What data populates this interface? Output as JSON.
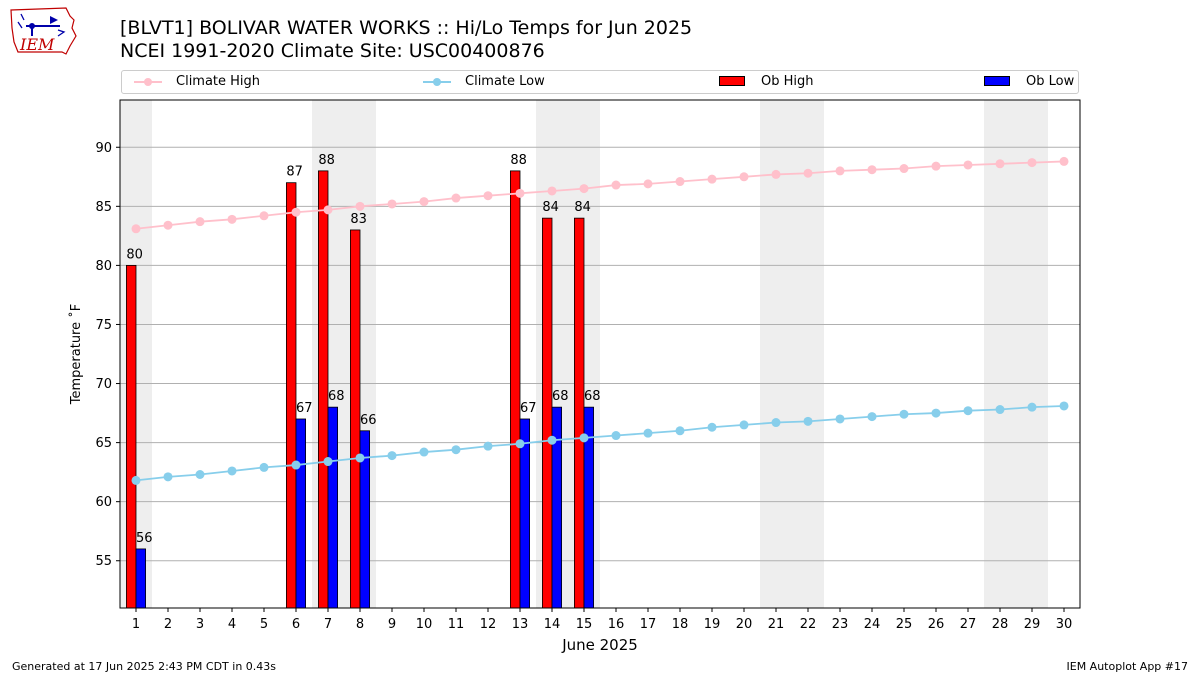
{
  "header": {
    "title_line1": "[BLVT1] BOLIVAR WATER WORKS :: Hi/Lo Temps for Jun 2025",
    "title_line2": "NCEI 1991-2020 Climate Site: USC00400876",
    "logo_text": "IEM"
  },
  "footer": {
    "left": "Generated at 17 Jun 2025 2:43 PM CDT in 0.43s",
    "right": "IEM Autoplot App #17"
  },
  "colors": {
    "climate_high": "#ffc0cb",
    "climate_low": "#87ceeb",
    "ob_high": "#ff0000",
    "ob_low": "#0000ff",
    "weekend_shade": "#eeeeee",
    "grid": "#b0b0b0"
  },
  "chart_data": {
    "type": "bar",
    "title": "[BLVT1] BOLIVAR WATER WORKS :: Hi/Lo Temps for Jun 2025",
    "subtitle": "NCEI 1991-2020 Climate Site: USC00400876",
    "xlabel": "June 2025",
    "ylabel": "Temperature ˚F",
    "xlim": [
      0.5,
      30.5
    ],
    "ylim": [
      51,
      94
    ],
    "yticks": [
      55,
      60,
      65,
      70,
      75,
      80,
      85,
      90
    ],
    "grid": "y",
    "legend_position": "top",
    "legend": [
      "Climate High",
      "Climate Low",
      "Ob High",
      "Ob Low"
    ],
    "days": [
      1,
      2,
      3,
      4,
      5,
      6,
      7,
      8,
      9,
      10,
      11,
      12,
      13,
      14,
      15,
      16,
      17,
      18,
      19,
      20,
      21,
      22,
      23,
      24,
      25,
      26,
      27,
      28,
      29,
      30
    ],
    "shaded_weekends": [
      [
        1,
        1
      ],
      [
        7,
        8
      ],
      [
        14,
        15
      ],
      [
        21,
        22
      ],
      [
        28,
        29
      ]
    ],
    "series": [
      {
        "name": "Climate High",
        "kind": "line",
        "values": [
          83.1,
          83.4,
          83.7,
          83.9,
          84.2,
          84.5,
          84.7,
          85.0,
          85.2,
          85.4,
          85.7,
          85.9,
          86.1,
          86.3,
          86.5,
          86.8,
          86.9,
          87.1,
          87.3,
          87.5,
          87.7,
          87.8,
          88.0,
          88.1,
          88.2,
          88.4,
          88.5,
          88.6,
          88.7,
          88.8
        ]
      },
      {
        "name": "Climate Low",
        "kind": "line",
        "values": [
          61.8,
          62.1,
          62.3,
          62.6,
          62.9,
          63.1,
          63.4,
          63.7,
          63.9,
          64.2,
          64.4,
          64.7,
          64.9,
          65.2,
          65.4,
          65.6,
          65.8,
          66.0,
          66.3,
          66.5,
          66.7,
          66.8,
          67.0,
          67.2,
          67.4,
          67.5,
          67.7,
          67.8,
          68.0,
          68.1
        ]
      },
      {
        "name": "Ob High",
        "kind": "bar",
        "values": [
          80,
          null,
          null,
          null,
          null,
          87,
          88,
          83,
          null,
          null,
          null,
          null,
          88,
          84,
          84,
          null,
          null,
          null,
          null,
          null,
          null,
          null,
          null,
          null,
          null,
          null,
          null,
          null,
          null,
          null
        ]
      },
      {
        "name": "Ob Low",
        "kind": "bar",
        "values": [
          56,
          null,
          null,
          null,
          null,
          67,
          68,
          66,
          null,
          null,
          null,
          null,
          67,
          68,
          68,
          null,
          null,
          null,
          null,
          null,
          null,
          null,
          null,
          null,
          null,
          null,
          null,
          null,
          null,
          null
        ]
      }
    ]
  }
}
